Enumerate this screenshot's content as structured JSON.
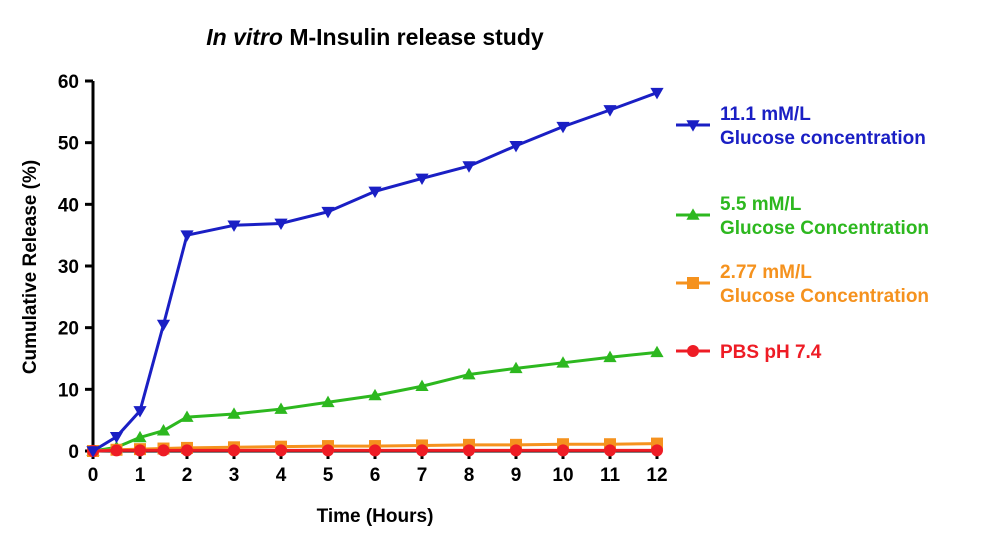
{
  "chart_data": {
    "type": "line",
    "title_italic": "In vitro",
    "title_rest": " M-Insulin release study",
    "xlabel": "Time (Hours)",
    "ylabel": "Cumulative Release (%)",
    "xlim": [
      0,
      12
    ],
    "ylim": [
      0,
      60
    ],
    "xticks": [
      0,
      1,
      2,
      3,
      4,
      5,
      6,
      7,
      8,
      9,
      10,
      11,
      12
    ],
    "yticks": [
      0,
      10,
      20,
      30,
      40,
      50,
      60
    ],
    "grid": false,
    "legend_placement": "right",
    "series": [
      {
        "name_line1": "11.1 mM/L",
        "name_line2": "Glucose concentration",
        "color": "#1a1fc4",
        "marker": "triangle-down",
        "x": [
          0,
          0.5,
          1,
          1.5,
          2,
          3,
          4,
          5,
          6,
          7,
          8,
          9,
          10,
          11,
          12
        ],
        "values": [
          0,
          2.3,
          6.5,
          20.5,
          35,
          36.6,
          36.9,
          38.8,
          42.1,
          44.2,
          46.2,
          49.5,
          52.6,
          55.3,
          58.1
        ]
      },
      {
        "name_line1": "5.5 mM/L",
        "name_line2": "Glucose Concentration",
        "color": "#2db81f",
        "marker": "triangle-up",
        "x": [
          0,
          0.5,
          1,
          1.5,
          2,
          3,
          4,
          5,
          6,
          7,
          8,
          9,
          10,
          11,
          12
        ],
        "values": [
          0,
          0.6,
          2.2,
          3.3,
          5.5,
          6.0,
          6.8,
          7.9,
          9.0,
          10.5,
          12.4,
          13.4,
          14.3,
          15.2,
          16.0
        ]
      },
      {
        "name_line1": "2.77 mM/L",
        "name_line2": "Glucose Concentration",
        "color": "#f5921e",
        "marker": "square",
        "x": [
          0,
          0.5,
          1,
          1.5,
          2,
          3,
          4,
          5,
          6,
          7,
          8,
          9,
          10,
          11,
          12
        ],
        "values": [
          0,
          0.2,
          0.3,
          0.4,
          0.5,
          0.6,
          0.7,
          0.8,
          0.8,
          0.9,
          1.0,
          1.0,
          1.1,
          1.1,
          1.2
        ]
      },
      {
        "name_line1": "PBS pH 7.4",
        "name_line2": "",
        "color": "#ee1c25",
        "marker": "circle",
        "x": [
          0,
          0.5,
          1,
          1.5,
          2,
          3,
          4,
          5,
          6,
          7,
          8,
          9,
          10,
          11,
          12
        ],
        "values": [
          0,
          0.1,
          0.1,
          0.1,
          0.1,
          0.1,
          0.1,
          0.1,
          0.1,
          0.1,
          0.1,
          0.1,
          0.1,
          0.1,
          0.1
        ]
      }
    ]
  }
}
